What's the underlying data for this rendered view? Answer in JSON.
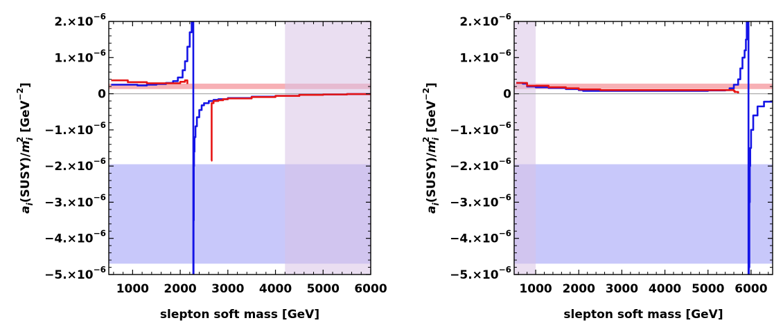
{
  "chart_data": [
    {
      "type": "line",
      "xlabel": "slepton soft mass [GeV]",
      "ylabel_parts": [
        "a",
        "i",
        "(SUSY)/",
        "m",
        "i",
        "2",
        " [GeV",
        "−2",
        "]"
      ],
      "xlim": [
        500,
        6000
      ],
      "ylim": [
        -5e-06,
        2e-06
      ],
      "xticks": [
        1000,
        2000,
        3000,
        4000,
        5000,
        6000
      ],
      "xtick_labels": [
        "1000",
        "2000",
        "3000",
        "4000",
        "5000",
        "6000"
      ],
      "yticks": [
        2e-06,
        1e-06,
        0,
        -1e-06,
        -2e-06,
        -3e-06,
        -4e-06,
        -5e-06
      ],
      "ytick_labels": [
        {
          "base": "2.×10",
          "exp": "−6"
        },
        {
          "base": "1.×10",
          "exp": "−6"
        },
        {
          "base": "0",
          "exp": ""
        },
        {
          "base": "−1.×10",
          "exp": "−6"
        },
        {
          "base": "−2.×10",
          "exp": "−6"
        },
        {
          "base": "−3.×10",
          "exp": "−6"
        },
        {
          "base": "−4.×10",
          "exp": "−6"
        },
        {
          "base": "−5.×10",
          "exp": "−6"
        }
      ],
      "bands": [
        {
          "axis": "y",
          "from": -4.7e-06,
          "to": -1.95e-06,
          "color": "#c8c8fa"
        },
        {
          "axis": "y",
          "from": 1.3e-07,
          "to": 2.8e-07,
          "color": "#f7b0b5"
        },
        {
          "axis": "x",
          "from": 4200,
          "to": 6000,
          "color": "#d8c3e6",
          "opacity": 0.55
        }
      ],
      "series": [
        {
          "color": "#1414e6",
          "x": [
            550,
            900,
            1100,
            1300,
            1500,
            1700,
            1850,
            1950,
            2050,
            2100,
            2150,
            2200,
            2240,
            2260,
            2270,
            2275,
            2280,
            2285,
            2290,
            2300,
            2320,
            2350,
            2400,
            2450,
            2500,
            2600,
            2700,
            2800,
            3000,
            3500,
            4000,
            4500,
            5000,
            5500,
            6000
          ],
          "y": [
            2.5e-07,
            2.5e-07,
            2.3e-07,
            2.5e-07,
            2.7e-07,
            3e-07,
            3.5e-07,
            4.5e-07,
            6.5e-07,
            9e-07,
            1.3e-06,
            1.7e-06,
            2e-06,
            2.3e-06,
            3e-06,
            -6e-06,
            -3.5e-06,
            -2e-06,
            -1.6e-06,
            -1.2e-06,
            -9e-07,
            -6.5e-07,
            -4.5e-07,
            -3.2e-07,
            -2.6e-07,
            -2e-07,
            -1.7e-07,
            -1.5e-07,
            -1.2e-07,
            -8e-08,
            -6e-08,
            -3e-08,
            -2e-08,
            -1e-08,
            -1e-08
          ]
        },
        {
          "color": "#e61414",
          "x": [
            550,
            900,
            1300,
            1700,
            2000,
            2100,
            2150
          ],
          "y": [
            3.7e-07,
            3.2e-07,
            2.9e-07,
            2.9e-07,
            3.3e-07,
            3.7e-07,
            2.7e-07
          ]
        },
        {
          "color": "#e61414",
          "x": [
            2650,
            2660,
            2700,
            2800,
            2900,
            3000,
            3500,
            4000,
            4500,
            5000,
            5500,
            6000
          ],
          "y": [
            -1.85e-06,
            -2.6e-07,
            -2e-07,
            -1.8e-07,
            -1.5e-07,
            -1.3e-07,
            -9e-08,
            -6e-08,
            -3e-08,
            -2e-08,
            -1e-08,
            -1e-08
          ]
        }
      ]
    },
    {
      "type": "line",
      "xlabel": "slepton soft mass [GeV]",
      "ylabel_parts": [
        "a",
        "i",
        "(SUSY)/",
        "m",
        "i",
        "2",
        " [GeV",
        "−2",
        "]"
      ],
      "xlim": [
        500,
        6500
      ],
      "ylim": [
        -5e-06,
        2e-06
      ],
      "xticks": [
        1000,
        2000,
        3000,
        4000,
        5000,
        6000
      ],
      "xtick_labels": [
        "1000",
        "2000",
        "3000",
        "4000",
        "5000",
        "6000"
      ],
      "yticks": [
        2e-06,
        1e-06,
        0,
        -1e-06,
        -2e-06,
        -3e-06,
        -4e-06,
        -5e-06
      ],
      "ytick_labels": [
        {
          "base": "2.×10",
          "exp": "−6"
        },
        {
          "base": "1.×10",
          "exp": "−6"
        },
        {
          "base": "0",
          "exp": ""
        },
        {
          "base": "−1.×10",
          "exp": "−6"
        },
        {
          "base": "−2.×10",
          "exp": "−6"
        },
        {
          "base": "−3.×10",
          "exp": "−6"
        },
        {
          "base": "−4.×10",
          "exp": "−6"
        },
        {
          "base": "−5.×10",
          "exp": "−6"
        }
      ],
      "bands": [
        {
          "axis": "y",
          "from": -4.7e-06,
          "to": -1.95e-06,
          "color": "#c8c8fa"
        },
        {
          "axis": "y",
          "from": 1.3e-07,
          "to": 2.8e-07,
          "color": "#f7b0b5"
        },
        {
          "axis": "x",
          "from": 500,
          "to": 1000,
          "color": "#d8c3e6",
          "opacity": 0.55
        }
      ],
      "series": [
        {
          "color": "#1414e6",
          "x": [
            550,
            700,
            800,
            1000,
            1300,
            1700,
            2000,
            2100,
            2500,
            3000,
            3500,
            4000,
            4500,
            5000,
            5400,
            5500,
            5600,
            5700,
            5750,
            5800,
            5850,
            5880,
            5900,
            5920,
            5930,
            5940,
            5950,
            5960,
            5970,
            5980,
            6000,
            6050,
            6150,
            6300,
            6500
          ],
          "y": [
            3e-07,
            2.8e-07,
            2e-07,
            1.8e-07,
            1.6e-07,
            1.3e-07,
            1e-07,
            8e-08,
            8e-08,
            8e-08,
            8e-08,
            8e-08,
            8e-08,
            9e-08,
            1e-07,
            1.5e-07,
            2.5e-07,
            4e-07,
            7e-07,
            1e-06,
            1.2e-06,
            1.5e-06,
            2e-06,
            2.3e-06,
            3e-06,
            -6e-06,
            -4.8e-06,
            -3e-06,
            -2e-06,
            -1.5e-06,
            -1e-06,
            -6e-07,
            -3.5e-07,
            -2.2e-07,
            -1.8e-07
          ]
        },
        {
          "color": "#e61414",
          "x": [
            550,
            800,
            1300,
            1700,
            2000,
            2500,
            3000,
            3500,
            4000,
            4500,
            5000,
            5300,
            5500,
            5600,
            5620,
            5700
          ],
          "y": [
            3e-07,
            2.2e-07,
            1.8e-07,
            1.5e-07,
            1.2e-07,
            1e-07,
            1e-07,
            1e-07,
            1e-07,
            1e-07,
            1e-07,
            1e-07,
            1e-07,
            8e-08,
            5e-08,
            1e-08
          ]
        }
      ]
    }
  ]
}
